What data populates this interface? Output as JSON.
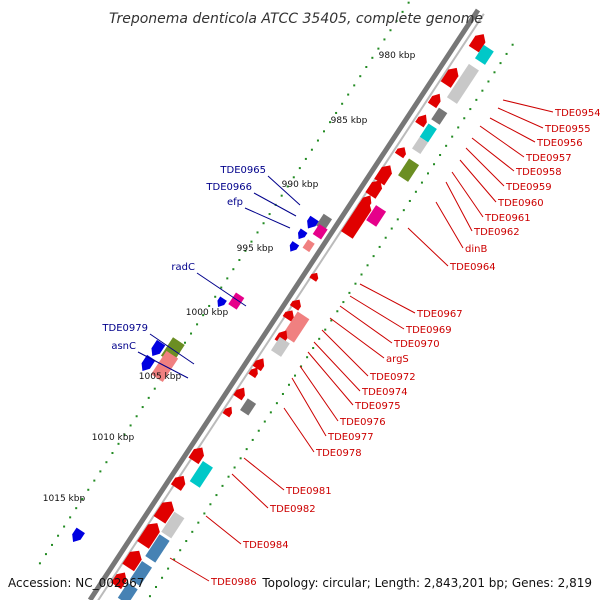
{
  "title": "Treponema denticola ATCC 35405, complete genome",
  "footer": {
    "accession": "Accession: NC_002967",
    "summary": "Topology: circular; Length: 2,843,201 bp; Genes: 2,819"
  },
  "colors": {
    "forward_label": "#cc0000",
    "reverse_label": "#00008b",
    "backbone": "#777777",
    "tick_dots": "#228b22"
  },
  "ticks": [
    "980 kbp",
    "985 kbp",
    "990 kbp",
    "995 kbp",
    "1000 kbp",
    "1005 kbp",
    "1010 kbp",
    "1015 kbp"
  ],
  "forward_labels": [
    "TDE0954",
    "TDE0955",
    "TDE0956",
    "TDE0957",
    "TDE0958",
    "TDE0959",
    "TDE0960",
    "TDE0961",
    "TDE0962",
    "dinB",
    "TDE0964",
    "TDE0967",
    "TDE0969",
    "TDE0970",
    "argS",
    "TDE0972",
    "TDE0974",
    "TDE0975",
    "TDE0976",
    "TDE0977",
    "TDE0978",
    "TDE0981",
    "TDE0982",
    "TDE0984",
    "TDE0986"
  ],
  "reverse_labels": [
    "TDE0965",
    "TDE0966",
    "efp",
    "radC",
    "TDE0979",
    "asnC"
  ]
}
